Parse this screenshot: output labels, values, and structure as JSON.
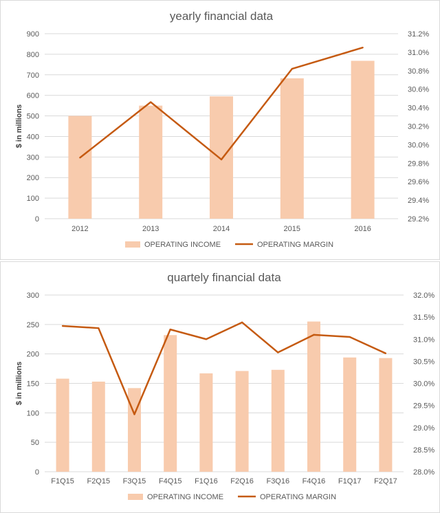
{
  "chart_data": [
    {
      "type": "bar+line",
      "title": "yearly financial data",
      "ylabel": "$ in millions",
      "y2label": "",
      "categories": [
        "2012",
        "2013",
        "2014",
        "2015",
        "2016"
      ],
      "ylim": [
        0,
        900
      ],
      "yticks": [
        0,
        100,
        200,
        300,
        400,
        500,
        600,
        700,
        800,
        900
      ],
      "y2lim": [
        29.2,
        31.2
      ],
      "y2ticks": [
        "29.2%",
        "29.4%",
        "29.6%",
        "29.8%",
        "30.0%",
        "30.2%",
        "30.4%",
        "30.6%",
        "30.8%",
        "31.0%",
        "31.2%"
      ],
      "series": [
        {
          "name": "OPERATING INCOME",
          "type": "bar",
          "axis": "left",
          "color": "#f8cbad",
          "values": [
            500,
            550,
            595,
            683,
            768
          ]
        },
        {
          "name": "OPERATING MARGIN",
          "type": "line",
          "axis": "right",
          "unit": "%",
          "color": "#c55a11",
          "values": [
            29.86,
            30.46,
            29.84,
            30.82,
            31.05
          ]
        }
      ],
      "grid": true,
      "legend": "bottom"
    },
    {
      "type": "bar+line",
      "title": "quartely financial data",
      "ylabel": "$ in millions",
      "y2label": "",
      "categories": [
        "F1Q15",
        "F2Q15",
        "F3Q15",
        "F4Q15",
        "F1Q16",
        "F2Q16",
        "F3Q16",
        "F4Q16",
        "F1Q17",
        "F2Q17"
      ],
      "ylim": [
        0,
        300
      ],
      "yticks": [
        0,
        50,
        100,
        150,
        200,
        250,
        300
      ],
      "y2lim": [
        28.0,
        32.0
      ],
      "y2ticks": [
        "28.0%",
        "28.5%",
        "29.0%",
        "29.5%",
        "30.0%",
        "30.5%",
        "31.0%",
        "31.5%",
        "32.0%"
      ],
      "series": [
        {
          "name": "OPERATING INCOME",
          "type": "bar",
          "axis": "left",
          "color": "#f8cbad",
          "values": [
            158,
            153,
            142,
            232,
            167,
            171,
            173,
            255,
            194,
            193
          ]
        },
        {
          "name": "OPERATING MARGIN",
          "type": "line",
          "axis": "right",
          "unit": "%",
          "color": "#c55a11",
          "values": [
            31.3,
            31.25,
            29.3,
            31.22,
            31.0,
            31.38,
            30.7,
            31.1,
            31.05,
            30.68
          ]
        }
      ],
      "grid": true,
      "legend": "bottom"
    }
  ]
}
